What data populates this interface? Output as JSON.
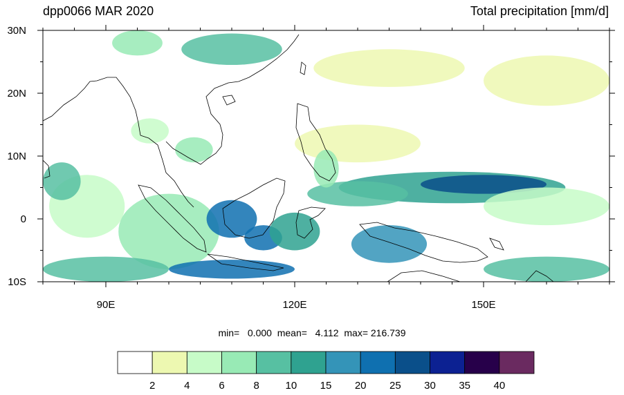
{
  "header": {
    "left_title": "dpp0066 MAR 2020",
    "right_title": "Total precipitation [mm/d]"
  },
  "map": {
    "lon_range": [
      80,
      170
    ],
    "lat_range": [
      -10,
      30
    ],
    "lon_ticks": [
      {
        "value": 90,
        "label": "90E"
      },
      {
        "value": 120,
        "label": "120E"
      },
      {
        "value": 150,
        "label": "150E"
      }
    ],
    "lat_ticks": [
      {
        "value": 30,
        "label": "30N"
      },
      {
        "value": 20,
        "label": "20N"
      },
      {
        "value": 10,
        "label": "10N"
      },
      {
        "value": 0,
        "label": "0"
      },
      {
        "value": -10,
        "label": "10S"
      }
    ],
    "coastline_color": "#000000",
    "background_color": "#ffffff"
  },
  "stats": {
    "min_label": "min=",
    "min_value": "0.000",
    "mean_label": "mean=",
    "mean_value": "4.112",
    "max_label": "max=",
    "max_value": "216.739"
  },
  "colorbar": {
    "colors": [
      "#ffffff",
      "#edf8b1",
      "#c7fbc8",
      "#98eab5",
      "#57c0a2",
      "#2fa290",
      "#3494b8",
      "#0f70b0",
      "#0a4f8a",
      "#0c2192",
      "#27004a",
      "#6a2a60"
    ],
    "labels": [
      "2",
      "4",
      "6",
      "8",
      "10",
      "15",
      "20",
      "25",
      "30",
      "35",
      "40"
    ]
  },
  "precip_regions": [
    {
      "lon": 87,
      "lat": 2,
      "rx": 6,
      "ry": 5,
      "level": 2
    },
    {
      "lon": 83,
      "lat": 6,
      "rx": 3,
      "ry": 3,
      "level": 4
    },
    {
      "lon": 100,
      "lat": -2,
      "rx": 8,
      "ry": 6,
      "level": 3
    },
    {
      "lon": 110,
      "lat": 0,
      "rx": 4,
      "ry": 3,
      "level": 7
    },
    {
      "lon": 115,
      "lat": -3,
      "rx": 3,
      "ry": 2,
      "level": 7
    },
    {
      "lon": 120,
      "lat": -2,
      "rx": 4,
      "ry": 3,
      "level": 5
    },
    {
      "lon": 135,
      "lat": -4,
      "rx": 6,
      "ry": 3,
      "level": 6
    },
    {
      "lon": 145,
      "lat": 5,
      "rx": 18,
      "ry": 2.5,
      "level": 5
    },
    {
      "lon": 150,
      "lat": 5.5,
      "rx": 10,
      "ry": 1.5,
      "level": 8
    },
    {
      "lon": 130,
      "lat": 4,
      "rx": 8,
      "ry": 2,
      "level": 4
    },
    {
      "lon": 160,
      "lat": 2,
      "rx": 10,
      "ry": 3,
      "level": 2
    },
    {
      "lon": 110,
      "lat": -8,
      "rx": 10,
      "ry": 1.5,
      "level": 7
    },
    {
      "lon": 90,
      "lat": -8,
      "rx": 10,
      "ry": 2,
      "level": 4
    },
    {
      "lon": 160,
      "lat": -8,
      "rx": 10,
      "ry": 2,
      "level": 4
    },
    {
      "lon": 110,
      "lat": 27,
      "rx": 8,
      "ry": 2.5,
      "level": 4
    },
    {
      "lon": 95,
      "lat": 28,
      "rx": 4,
      "ry": 2,
      "level": 3
    },
    {
      "lon": 135,
      "lat": 24,
      "rx": 12,
      "ry": 3,
      "level": 1
    },
    {
      "lon": 160,
      "lat": 22,
      "rx": 10,
      "ry": 4,
      "level": 1
    },
    {
      "lon": 130,
      "lat": 12,
      "rx": 10,
      "ry": 3,
      "level": 1
    },
    {
      "lon": 104,
      "lat": 11,
      "rx": 3,
      "ry": 2,
      "level": 3
    },
    {
      "lon": 125,
      "lat": 8,
      "rx": 2,
      "ry": 3,
      "level": 3
    },
    {
      "lon": 97,
      "lat": 14,
      "rx": 3,
      "ry": 2,
      "level": 2
    }
  ]
}
